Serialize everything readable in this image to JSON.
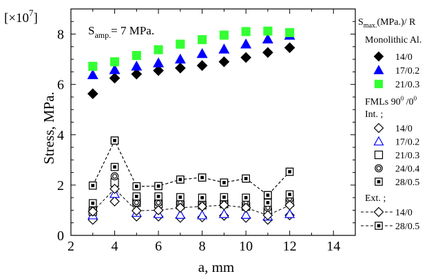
{
  "chart_data": {
    "type": "scatter",
    "scale_label": "[×10",
    "scale_exp": "7",
    "scale_close": "]",
    "xlabel": "a, mm",
    "ylabel": "Stress, MPa.",
    "xlim": [
      2,
      15
    ],
    "ylim": [
      0,
      9
    ],
    "xticks": [
      2,
      4,
      6,
      8,
      10,
      12,
      14
    ],
    "yticks": [
      0,
      2,
      4,
      6,
      8
    ],
    "annotation": {
      "main": "S",
      "sub": "amp.",
      "rest": "= 7 MPa."
    },
    "legend_header": {
      "main": "S",
      "sub": "max.",
      "rest": "(MPa.)/ R"
    },
    "legend_group_mono": "Monolithic Al.",
    "legend_group_fml": {
      "main": "FMLs 90",
      "sup1": "0",
      "mid": " /0",
      "sup2": "0"
    },
    "legend_int": "Int. ;",
    "legend_ext": "Ext. ;",
    "series": [
      {
        "name": "14/0",
        "group": "mono",
        "marker": "diamond",
        "color": "#000000",
        "filled": true,
        "x": [
          3,
          4,
          5,
          6,
          7,
          8,
          9,
          10,
          11,
          12
        ],
        "y": [
          5.63,
          6.25,
          6.41,
          6.55,
          6.65,
          6.75,
          6.9,
          7.07,
          7.27,
          7.46
        ]
      },
      {
        "name": "17/0.2",
        "group": "mono",
        "marker": "triangle",
        "color": "#0000ff",
        "filled": true,
        "x": [
          3,
          4,
          5,
          6,
          7,
          8,
          9,
          10,
          11,
          12
        ],
        "y": [
          6.38,
          6.58,
          6.72,
          6.85,
          7.0,
          7.22,
          7.4,
          7.6,
          7.8,
          7.95
        ]
      },
      {
        "name": "21/0.3",
        "group": "mono",
        "marker": "square",
        "color": "#33ff33",
        "filled": true,
        "x": [
          3,
          4,
          5,
          6,
          7,
          8,
          9,
          10,
          11,
          12
        ],
        "y": [
          6.72,
          6.9,
          7.15,
          7.38,
          7.6,
          7.78,
          7.96,
          8.1,
          8.12,
          8.06
        ]
      },
      {
        "name": "14/0",
        "group": "int",
        "marker": "diamond",
        "color": "#000000",
        "filled": false,
        "x": [
          3,
          4,
          5,
          6,
          7,
          8,
          9,
          10,
          11,
          12
        ],
        "y": [
          0.62,
          1.35,
          0.75,
          0.75,
          0.7,
          0.72,
          0.78,
          0.7,
          0.62,
          0.8
        ]
      },
      {
        "name": "17/0.2",
        "group": "int",
        "marker": "triangle",
        "color": "#0000ff",
        "filled": false,
        "x": [
          3,
          4,
          5,
          6,
          7,
          8,
          9,
          10,
          11,
          12
        ],
        "y": [
          0.8,
          1.65,
          0.9,
          0.85,
          0.82,
          0.8,
          0.85,
          0.82,
          0.75,
          0.85
        ]
      },
      {
        "name": "21/0.3",
        "group": "int",
        "marker": "square",
        "color": "#000000",
        "filled": false,
        "x": [
          3,
          4,
          5,
          6,
          7,
          8,
          9,
          10,
          11,
          12
        ],
        "y": [
          0.95,
          2.1,
          1.3,
          1.25,
          1.2,
          1.2,
          1.25,
          1.15,
          0.95,
          1.3
        ]
      },
      {
        "name": "24/0.4",
        "group": "int",
        "marker": "circle-dot",
        "color": "#000000",
        "filled": false,
        "x": [
          3,
          4,
          5,
          6,
          7,
          8,
          9,
          10,
          11,
          12
        ],
        "y": [
          1.05,
          2.35,
          1.3,
          1.3,
          1.3,
          1.3,
          1.3,
          1.3,
          1.1,
          1.45
        ]
      },
      {
        "name": "28/0.5",
        "group": "int",
        "marker": "square-dot",
        "color": "#000000",
        "filled": false,
        "x": [
          3,
          4,
          5,
          6,
          7,
          8,
          9,
          10,
          11,
          12
        ],
        "y": [
          1.28,
          2.72,
          1.55,
          1.55,
          1.52,
          1.5,
          1.52,
          1.5,
          1.3,
          1.63
        ]
      },
      {
        "name": "28/0.5",
        "group": "int-edge",
        "marker": "square-dot",
        "color": "#000000",
        "filled": false,
        "x": [
          3,
          4,
          5,
          6,
          7,
          8,
          9,
          10,
          11,
          12
        ],
        "y": [
          1.98,
          3.77,
          1.95,
          1.96,
          2.22,
          2.3,
          2.1,
          2.26,
          1.6,
          2.53
        ]
      },
      {
        "name": "14/0",
        "group": "ext",
        "marker": "diamond",
        "color": "#000000",
        "filled": false,
        "line": "dashed",
        "x": [
          3,
          4,
          5,
          6,
          7,
          8,
          9,
          10,
          11,
          12
        ],
        "y": [
          0.95,
          1.85,
          0.98,
          1.0,
          1.1,
          1.15,
          1.2,
          1.1,
          0.8,
          1.2
        ]
      },
      {
        "name": "28/0.5",
        "group": "ext",
        "marker": "square-dot",
        "color": "#000000",
        "filled": false,
        "line": "dashed",
        "x": [
          3,
          4,
          5,
          6,
          7,
          8,
          9,
          10,
          11,
          12
        ],
        "y": [
          1.98,
          3.77,
          1.95,
          1.96,
          2.22,
          2.3,
          2.1,
          2.26,
          1.6,
          2.53
        ]
      }
    ]
  }
}
